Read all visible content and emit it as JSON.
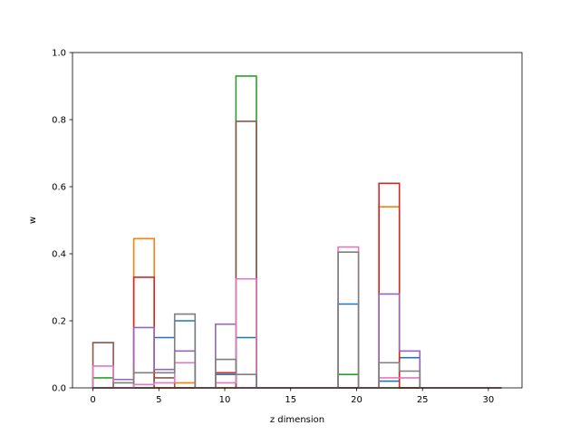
{
  "chart_data": {
    "type": "bar",
    "style": "step histogram (unfilled), stacked series",
    "xlabel": "z dimension",
    "ylabel": "w",
    "xlim": [
      -1.55,
      32.55
    ],
    "ylim": [
      0,
      1.0
    ],
    "x_ticks": [
      0,
      5,
      10,
      15,
      20,
      25,
      30
    ],
    "y_ticks": [
      0.0,
      0.2,
      0.4,
      0.6,
      0.8,
      1.0
    ],
    "x_tick_labels": [
      "0",
      "5",
      "10",
      "15",
      "20",
      "25",
      "30"
    ],
    "y_tick_labels": [
      "0.0",
      "0.2",
      "0.4",
      "0.6",
      "0.8",
      "1.0"
    ],
    "grid": false,
    "legend": "none",
    "bin_edges": [
      0,
      1.55,
      3.1,
      4.65,
      6.2,
      7.75,
      9.3,
      10.85,
      12.4,
      13.95,
      15.5,
      17.05,
      18.6,
      20.15,
      21.7,
      23.25,
      24.8,
      26.35,
      27.9,
      29.45,
      31.0
    ],
    "series": [
      {
        "color": "#1f77b4",
        "values": [
          0.0,
          0.0,
          0.0,
          0.15,
          0.2,
          0.0,
          0.04,
          0.15,
          0.0,
          0.0,
          0.0,
          0.0,
          0.25,
          0.0,
          0.02,
          0.09,
          0.0,
          0.0,
          0.0,
          0.0
        ]
      },
      {
        "color": "#ff7f0e",
        "values": [
          0.0,
          0.0,
          0.445,
          0.0,
          0.015,
          0.0,
          0.0,
          0.0,
          0.0,
          0.0,
          0.0,
          0.0,
          0.0,
          0.0,
          0.54,
          0.0,
          0.0,
          0.0,
          0.0,
          0.0
        ]
      },
      {
        "color": "#2ca02c",
        "values": [
          0.03,
          0.0,
          0.0,
          0.0,
          0.0,
          0.0,
          0.0,
          0.93,
          0.0,
          0.0,
          0.0,
          0.0,
          0.04,
          0.0,
          0.0,
          0.0,
          0.0,
          0.0,
          0.0,
          0.0
        ]
      },
      {
        "color": "#d62728",
        "values": [
          0.0,
          0.0,
          0.33,
          0.0,
          0.0,
          0.0,
          0.045,
          0.0,
          0.0,
          0.0,
          0.0,
          0.0,
          0.0,
          0.0,
          0.61,
          0.0,
          0.0,
          0.0,
          0.0,
          0.0
        ]
      },
      {
        "color": "#9467bd",
        "values": [
          0.0,
          0.025,
          0.18,
          0.055,
          0.11,
          0.0,
          0.19,
          0.0,
          0.0,
          0.0,
          0.0,
          0.0,
          0.0,
          0.0,
          0.28,
          0.11,
          0.0,
          0.0,
          0.0,
          0.0
        ]
      },
      {
        "color": "#8c564b",
        "values": [
          0.135,
          0.0,
          0.0,
          0.03,
          0.0,
          0.0,
          0.0,
          0.795,
          0.0,
          0.0,
          0.0,
          0.0,
          0.0,
          0.0,
          0.0,
          0.0,
          0.0,
          0.0,
          0.0,
          0.0
        ]
      },
      {
        "color": "#e377c2",
        "values": [
          0.065,
          0.0,
          0.01,
          0.015,
          0.075,
          0.0,
          0.015,
          0.325,
          0.0,
          0.0,
          0.0,
          0.0,
          0.42,
          0.0,
          0.03,
          0.03,
          0.0,
          0.0,
          0.0,
          0.0
        ]
      },
      {
        "color": "#7f7f7f",
        "values": [
          0.0,
          0.015,
          0.045,
          0.045,
          0.22,
          0.0,
          0.085,
          0.04,
          0.0,
          0.0,
          0.0,
          0.0,
          0.405,
          0.0,
          0.075,
          0.05,
          0.0,
          0.0,
          0.0,
          0.0
        ]
      }
    ]
  }
}
